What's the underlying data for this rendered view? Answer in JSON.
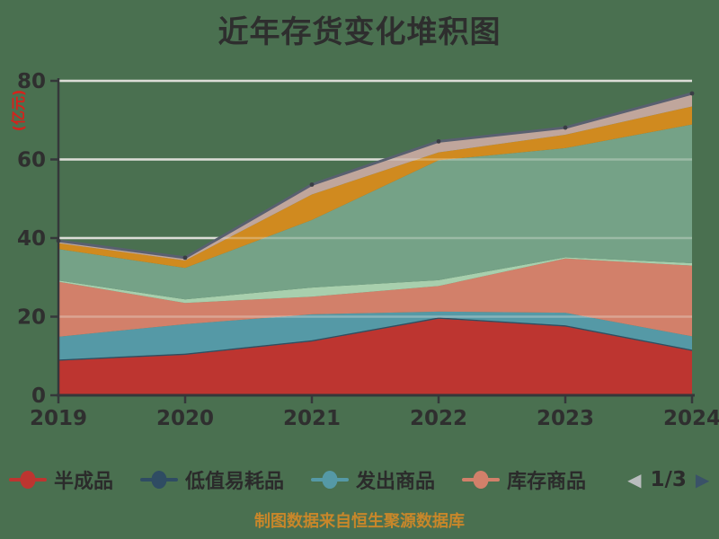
{
  "title": "近年存货变化堆积图",
  "caption": "制图数据来自恒生聚源数据库",
  "colors": {
    "background": "#4a7050",
    "title": "#2e2e2e",
    "axis": "#35373a",
    "tick_text": "#2f2f2f",
    "grid": "#d4d6d0",
    "y_unit_label": "#d4231c",
    "caption": "#c8872a",
    "total_top_line": "#596070"
  },
  "legend": {
    "items": [
      {
        "label": "半成品",
        "color": "#bd3530"
      },
      {
        "label": "低值易耗品",
        "color": "#2f4c63"
      },
      {
        "label": "发出商品",
        "color": "#5599a6"
      },
      {
        "label": "库存商品",
        "color": "#d2806a"
      }
    ],
    "pager": {
      "page_label": "1/3",
      "prev_icon": "◀",
      "next_icon": "▶",
      "prev_color": "#b9bdbe",
      "next_color": "#3a5268"
    }
  },
  "chart_data": {
    "type": "area",
    "stacked": true,
    "title": "近年存货变化堆积图",
    "x": [
      "2019",
      "2020",
      "2021",
      "2022",
      "2023",
      "2024"
    ],
    "ylabel": "(亿元)",
    "ylim": [
      0,
      80
    ],
    "y_ticks": [
      0,
      20,
      40,
      60,
      80
    ],
    "grid": true,
    "legend_position": "bottom",
    "series": [
      {
        "name": "半成品",
        "color": "#bd3530",
        "values": [
          8.8,
          10.3,
          13.7,
          19.5,
          17.5,
          11.3
        ]
      },
      {
        "name": "低值易耗品",
        "color": "#2f4c63",
        "values": [
          0.3,
          0.3,
          0.3,
          0.3,
          0.3,
          0.3
        ]
      },
      {
        "name": "发出商品",
        "color": "#5599a6",
        "values": [
          5.8,
          7.5,
          6.6,
          1.5,
          3.2,
          3.4
        ]
      },
      {
        "name": "库存商品",
        "color": "#d2806a",
        "values": [
          14.0,
          5.4,
          4.5,
          6.5,
          13.8,
          18.0
        ]
      },
      {
        "name": "",
        "color": "#a8cfad",
        "values": [
          0.3,
          0.9,
          2.3,
          1.5,
          0.3,
          0.6
        ]
      },
      {
        "name": "",
        "color": "#75a287",
        "values": [
          8.0,
          8.0,
          17.2,
          30.5,
          27.8,
          35.3
        ]
      },
      {
        "name": "",
        "color": "#d08a1f",
        "values": [
          1.5,
          1.9,
          6.5,
          2.0,
          3.4,
          4.6
        ]
      },
      {
        "name": "",
        "color": "#c0a69c",
        "values": [
          0.6,
          0.7,
          2.5,
          2.8,
          1.8,
          3.3
        ]
      }
    ]
  }
}
